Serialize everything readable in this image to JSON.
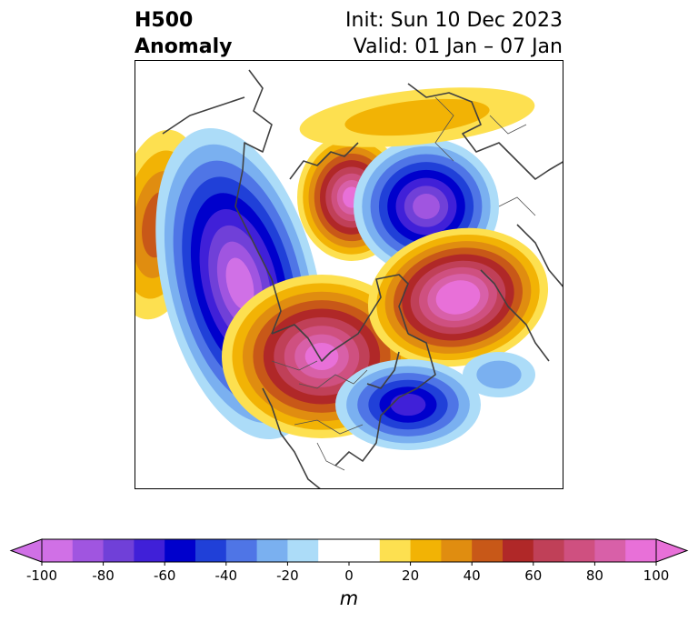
{
  "header": {
    "field_line1": "H500",
    "field_line2": "Anomaly",
    "init_label": "Init: Sun 10 Dec 2023",
    "valid_label": "Valid: 01 Jan – 07 Jan"
  },
  "map": {
    "projection": "north-polar-stereographic",
    "variable": "500 hPa geopotential height anomaly",
    "features": [
      {
        "name": "ridge-pacific-far-west",
        "sign": "positive",
        "peak_m": 40
      },
      {
        "name": "trough-north-pacific",
        "sign": "negative",
        "peak_m": -90
      },
      {
        "name": "ridge-north-america",
        "sign": "positive",
        "peak_m": 90
      },
      {
        "name": "ridge-east-siberia",
        "sign": "positive",
        "peak_m": 90
      },
      {
        "name": "trough-central-asia",
        "sign": "negative",
        "peak_m": -80
      },
      {
        "name": "ridge-central-asia",
        "sign": "positive",
        "peak_m": 100
      },
      {
        "name": "ridge-arctic",
        "sign": "positive",
        "peak_m": 20
      },
      {
        "name": "trough-north-atlantic",
        "sign": "negative",
        "peak_m": -60
      },
      {
        "name": "trough-north-atlantic-ext",
        "sign": "negative",
        "peak_m": -20
      }
    ]
  },
  "colorbar": {
    "unit": "m",
    "extend": "both",
    "min": -100,
    "max": 100,
    "step": 10,
    "tick_labels": [
      "-100",
      "-80",
      "-60",
      "-40",
      "-20",
      "0",
      "20",
      "40",
      "60",
      "80",
      "100"
    ],
    "colors": [
      "#d070e6",
      "#a055e0",
      "#7040d8",
      "#4020d8",
      "#0000cc",
      "#2040d8",
      "#4f75e6",
      "#7ab0f0",
      "#acdcf8",
      "#ffffff",
      "#ffffff",
      "#fde050",
      "#f2b305",
      "#e08d10",
      "#c85818",
      "#b02828",
      "#c04058",
      "#cf5080",
      "#d860a8",
      "#e870d8"
    ],
    "under_color": "#d070e6",
    "over_color": "#e870d8"
  }
}
